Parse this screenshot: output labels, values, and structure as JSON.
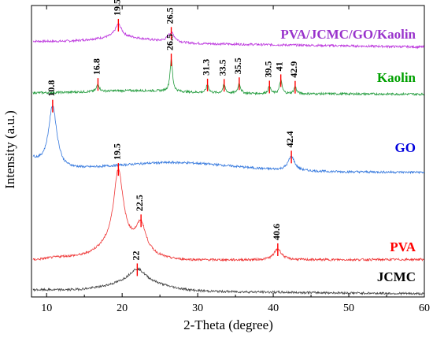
{
  "chart_data": {
    "type": "line",
    "title": "",
    "xlabel": "2-Theta (degree)",
    "ylabel": "Intensity (a.u.)",
    "xlim": [
      8,
      60
    ],
    "x_ticks": [
      "10",
      "20",
      "30",
      "40",
      "50",
      "60"
    ],
    "y_ticks_shown": false,
    "grid": false,
    "legend": "none; series names printed at right end of each curve",
    "peak_marker_color": "#ff0000",
    "series": [
      {
        "name": "PVA/JCMC/GO/Kaolin",
        "color": "#bb33dd",
        "label_color": "#9933cc",
        "offset": 3.85,
        "peaks": [
          {
            "x": 19.5,
            "label": "19.5",
            "height": 0.2
          },
          {
            "x": 26.5,
            "label": "26.5",
            "height": 0.15
          }
        ]
      },
      {
        "name": "Kaolin",
        "color": "#1f9a3a",
        "label_color": "#00a000",
        "offset": 3.05,
        "peaks": [
          {
            "x": 16.8,
            "label": "16.8",
            "height": 0.12
          },
          {
            "x": 26.5,
            "label": "26.5",
            "height": 0.5
          },
          {
            "x": 31.3,
            "label": "31.3",
            "height": 0.13
          },
          {
            "x": 33.5,
            "label": "33.5",
            "height": 0.13
          },
          {
            "x": 35.5,
            "label": "35.5",
            "height": 0.16
          },
          {
            "x": 39.5,
            "label": "39.5",
            "height": 0.11
          },
          {
            "x": 41,
            "label": "41",
            "height": 0.21
          },
          {
            "x": 42.9,
            "label": "42.9",
            "height": 0.11
          }
        ]
      },
      {
        "name": "GO",
        "color": "#3377dd",
        "label_color": "#0000dd",
        "offset": 1.85,
        "peaks": [
          {
            "x": 10.8,
            "label": "10.8",
            "height": 0.95
          },
          {
            "x": 42.4,
            "label": "42.4",
            "height": 0.22
          }
        ]
      },
      {
        "name": "PVA",
        "color": "#ee3333",
        "label_color": "#ff0000",
        "offset": 0.45,
        "peaks": [
          {
            "x": 19.5,
            "label": "19.5",
            "height": 1.15
          },
          {
            "x": 22.5,
            "label": "22.5",
            "height": 0.4
          },
          {
            "x": 40.6,
            "label": "40.6",
            "height": 0.17
          }
        ]
      },
      {
        "name": "JCMC",
        "color": "#444444",
        "label_color": "#000000",
        "offset": 0.0,
        "peaks": [
          {
            "x": 22,
            "label": "22",
            "height": 0.22
          }
        ]
      }
    ]
  }
}
